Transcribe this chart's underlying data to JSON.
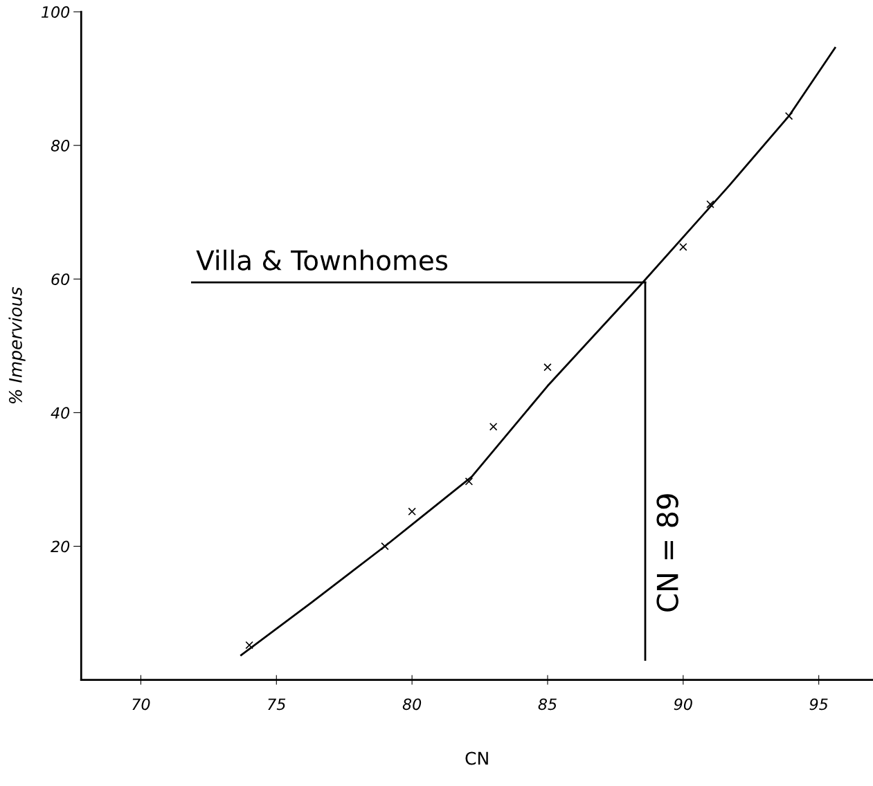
{
  "chart_data": {
    "type": "scatter",
    "xlabel": "CN",
    "ylabel": "% Impervious",
    "xlim": [
      67.8,
      97
    ],
    "ylim": [
      0,
      100
    ],
    "xticks": [
      70,
      75,
      80,
      85,
      90,
      95
    ],
    "yticks": [
      20,
      40,
      60,
      80,
      100
    ],
    "grid": false,
    "series": [
      {
        "marker": "cross",
        "color": "#000000",
        "x": [
          74,
          79,
          80,
          82.1,
          83,
          85,
          90,
          91,
          93.9
        ],
        "values": [
          5.2,
          20,
          25.2,
          29.7,
          37.9,
          46.8,
          64.8,
          71.2,
          84.4
        ]
      },
      {
        "type": "line",
        "marker": "none",
        "line_style": "solid",
        "color": "#000000",
        "x": [
          73.7,
          76.3,
          79,
          82.2,
          85,
          88.4,
          91.7,
          93.9,
          95.6
        ],
        "values": [
          3.7,
          11.6,
          20,
          30.4,
          44,
          59,
          74,
          84.4,
          94.6
        ]
      }
    ],
    "ref_lines": [
      {
        "axis": "y",
        "value": 59.5,
        "label": "Villa & Townhomes",
        "color": "#000000"
      },
      {
        "axis": "x",
        "value": 88.6,
        "label": "CN = 89",
        "color": "#000000"
      }
    ]
  }
}
